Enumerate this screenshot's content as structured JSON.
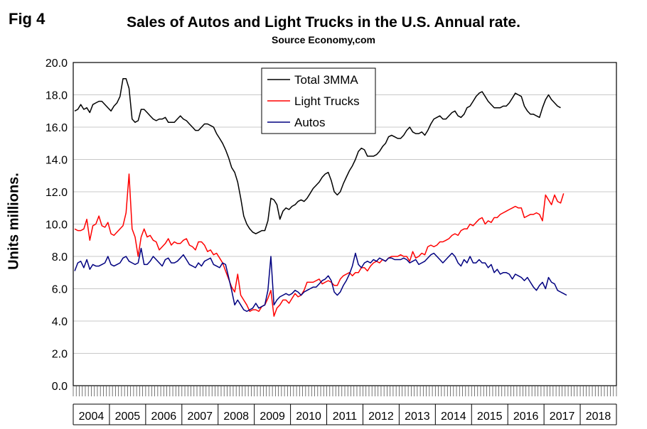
{
  "fig_label": "Fig 4",
  "chart_data": {
    "type": "line",
    "title": "Sales of Autos and Light Trucks in the U.S. Annual rate.",
    "subtitle": "Source Economy,com",
    "ylabel": "Units millions.",
    "xlabel": "",
    "ylim": [
      0,
      20
    ],
    "yticks": [
      "0.0",
      "2.0",
      "4.0",
      "6.0",
      "8.0",
      "10.0",
      "12.0",
      "14.0",
      "16.0",
      "18.0",
      "20.0"
    ],
    "years": [
      "2004",
      "2005",
      "2006",
      "2007",
      "2008",
      "2009",
      "2010",
      "2011",
      "2012",
      "2013",
      "2014",
      "2015",
      "2016",
      "2017",
      "2018"
    ],
    "x_start": "2004-01",
    "x_end": "2018-03",
    "grid": true,
    "legend_position": "top-center",
    "series": [
      {
        "name": "Total 3MMA",
        "color": "#000000",
        "values": [
          17.0,
          17.1,
          17.4,
          17.1,
          17.2,
          16.9,
          17.4,
          17.5,
          17.6,
          17.6,
          17.4,
          17.2,
          17.0,
          17.3,
          17.5,
          17.9,
          19.0,
          19.0,
          18.4,
          16.5,
          16.3,
          16.4,
          17.1,
          17.1,
          16.9,
          16.7,
          16.5,
          16.4,
          16.5,
          16.5,
          16.6,
          16.3,
          16.3,
          16.3,
          16.5,
          16.7,
          16.5,
          16.4,
          16.2,
          16.0,
          15.8,
          15.8,
          16.0,
          16.2,
          16.2,
          16.1,
          16.0,
          15.6,
          15.3,
          15.0,
          14.6,
          14.1,
          13.5,
          13.2,
          12.6,
          11.6,
          10.5,
          10.0,
          9.7,
          9.5,
          9.4,
          9.5,
          9.6,
          9.6,
          10.2,
          11.6,
          11.5,
          11.2,
          10.3,
          10.8,
          11.0,
          10.9,
          11.1,
          11.2,
          11.4,
          11.5,
          11.4,
          11.6,
          11.9,
          12.2,
          12.4,
          12.6,
          12.9,
          13.1,
          13.2,
          12.7,
          12.0,
          11.8,
          12.0,
          12.5,
          12.9,
          13.3,
          13.6,
          14.0,
          14.5,
          14.7,
          14.6,
          14.2,
          14.2,
          14.2,
          14.3,
          14.5,
          14.8,
          15.0,
          15.4,
          15.5,
          15.4,
          15.3,
          15.3,
          15.5,
          15.8,
          16.0,
          15.7,
          15.6,
          15.6,
          15.7,
          15.5,
          15.8,
          16.2,
          16.5,
          16.6,
          16.7,
          16.5,
          16.5,
          16.7,
          16.9,
          17.0,
          16.7,
          16.6,
          16.8,
          17.2,
          17.3,
          17.6,
          17.9,
          18.1,
          18.2,
          17.9,
          17.6,
          17.4,
          17.2,
          17.2,
          17.2,
          17.3,
          17.3,
          17.5,
          17.8,
          18.1,
          18.0,
          17.9,
          17.3,
          17.0,
          16.8,
          16.8,
          16.7,
          16.6,
          17.2,
          17.7,
          18.0,
          17.7,
          17.5,
          17.3,
          17.2
        ]
      },
      {
        "name": "Light Trucks",
        "color": "#ff0000",
        "values": [
          9.7,
          9.6,
          9.6,
          9.7,
          10.3,
          9.0,
          9.9,
          10.0,
          10.5,
          9.9,
          9.8,
          10.1,
          9.4,
          9.3,
          9.5,
          9.7,
          9.9,
          10.7,
          13.1,
          9.7,
          9.2,
          8.0,
          9.2,
          9.7,
          9.2,
          9.3,
          9.0,
          8.9,
          8.4,
          8.6,
          8.8,
          9.1,
          8.7,
          8.9,
          8.8,
          8.8,
          9.0,
          9.1,
          8.7,
          8.6,
          8.4,
          8.9,
          8.9,
          8.7,
          8.3,
          8.4,
          8.1,
          8.2,
          7.9,
          7.6,
          7.1,
          6.6,
          6.1,
          5.8,
          6.9,
          5.6,
          5.3,
          5.0,
          4.6,
          4.7,
          4.7,
          4.6,
          4.9,
          5.0,
          5.4,
          5.9,
          4.3,
          4.8,
          5.0,
          5.3,
          5.3,
          5.1,
          5.4,
          5.7,
          5.5,
          5.6,
          5.9,
          6.4,
          6.4,
          6.4,
          6.5,
          6.6,
          6.3,
          6.4,
          6.5,
          6.4,
          6.2,
          6.2,
          6.6,
          6.8,
          6.9,
          7.0,
          6.8,
          7.0,
          7.0,
          7.3,
          7.3,
          7.1,
          7.4,
          7.6,
          7.7,
          7.6,
          7.8,
          7.7,
          7.9,
          8.0,
          8.0,
          8.0,
          8.1,
          8.0,
          8.0,
          7.7,
          8.3,
          7.9,
          8.0,
          8.2,
          8.1,
          8.6,
          8.7,
          8.6,
          8.7,
          8.9,
          8.9,
          9.0,
          9.1,
          9.3,
          9.4,
          9.3,
          9.6,
          9.7,
          9.7,
          10.0,
          9.9,
          10.1,
          10.3,
          10.4,
          10.0,
          10.2,
          10.1,
          10.4,
          10.4,
          10.6,
          10.7,
          10.8,
          10.9,
          11.0,
          11.1,
          11.0,
          11.0,
          10.4,
          10.5,
          10.6,
          10.6,
          10.7,
          10.6,
          10.2,
          11.8,
          11.5,
          11.2,
          11.8,
          11.4,
          11.3,
          11.9
        ]
      },
      {
        "name": "Autos",
        "color": "#000080",
        "values": [
          7.1,
          7.6,
          7.7,
          7.3,
          7.8,
          7.2,
          7.5,
          7.4,
          7.4,
          7.5,
          7.6,
          8.0,
          7.5,
          7.4,
          7.5,
          7.6,
          7.9,
          8.0,
          7.7,
          7.6,
          7.5,
          7.6,
          8.5,
          7.5,
          7.5,
          7.7,
          8.0,
          7.8,
          7.6,
          7.4,
          7.8,
          7.9,
          7.6,
          7.6,
          7.7,
          7.9,
          8.1,
          7.8,
          7.5,
          7.4,
          7.3,
          7.6,
          7.4,
          7.7,
          7.8,
          7.9,
          7.5,
          7.4,
          7.3,
          7.6,
          7.5,
          6.7,
          5.9,
          5.0,
          5.3,
          5.0,
          4.7,
          4.6,
          4.7,
          4.8,
          5.1,
          4.8,
          4.9,
          5.0,
          5.9,
          8.0,
          5.0,
          5.3,
          5.5,
          5.6,
          5.7,
          5.6,
          5.7,
          5.9,
          5.8,
          5.6,
          5.8,
          5.9,
          6.0,
          6.1,
          6.1,
          6.3,
          6.5,
          6.6,
          6.8,
          6.5,
          5.8,
          5.6,
          5.8,
          6.2,
          6.5,
          6.9,
          7.4,
          8.2,
          7.5,
          7.3,
          7.6,
          7.7,
          7.6,
          7.8,
          7.7,
          7.9,
          7.8,
          7.7,
          7.9,
          7.9,
          7.8,
          7.8,
          7.8,
          7.9,
          7.8,
          7.6,
          7.7,
          7.8,
          7.5,
          7.6,
          7.7,
          7.9,
          8.1,
          8.2,
          8.0,
          7.8,
          7.6,
          7.8,
          8.0,
          8.2,
          8.0,
          7.6,
          7.4,
          7.8,
          7.6,
          8.0,
          7.6,
          7.6,
          7.8,
          7.6,
          7.6,
          7.3,
          7.5,
          7.0,
          7.2,
          6.9,
          7.0,
          7.0,
          6.9,
          6.6,
          6.9,
          6.8,
          6.7,
          6.5,
          6.7,
          6.4,
          6.1,
          5.9,
          6.2,
          6.4,
          6.0,
          6.7,
          6.4,
          6.3,
          5.9,
          5.8,
          5.7,
          5.6
        ]
      }
    ]
  }
}
